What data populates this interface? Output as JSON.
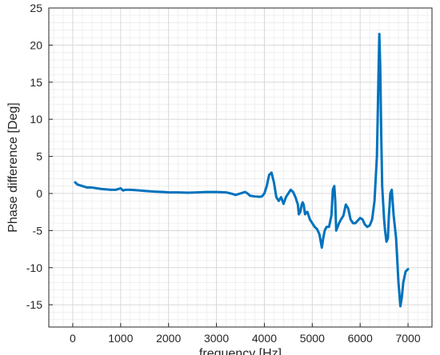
{
  "chart_data": {
    "type": "line",
    "title": "",
    "xlabel": "frequency [Hz]",
    "ylabel": "Phase difference [Deg]",
    "xlim": [
      -500,
      7500
    ],
    "ylim": [
      -18,
      25
    ],
    "xticks": [
      0,
      1000,
      2000,
      3000,
      4000,
      5000,
      6000,
      7000
    ],
    "xtick_labels": [
      "0",
      "1000",
      "2000",
      "3000",
      "4000",
      "5000",
      "6000",
      "7000"
    ],
    "yticks": [
      -15,
      -10,
      -5,
      0,
      5,
      10,
      15,
      20,
      25
    ],
    "ytick_labels": [
      "-15",
      "-10",
      "-5",
      "0",
      "5",
      "10",
      "15",
      "20",
      "25"
    ],
    "grid": "major and minor",
    "line_color": "#0072BD",
    "series": [
      {
        "name": "",
        "x": [
          50,
          100,
          200,
          300,
          400,
          500,
          600,
          700,
          800,
          900,
          950,
          1000,
          1050,
          1100,
          1200,
          1300,
          1400,
          1500,
          1700,
          1900,
          2000,
          2200,
          2400,
          2600,
          2800,
          3000,
          3200,
          3300,
          3400,
          3500,
          3600,
          3650,
          3700,
          3800,
          3900,
          3950,
          4000,
          4050,
          4100,
          4150,
          4200,
          4250,
          4300,
          4350,
          4400,
          4450,
          4500,
          4550,
          4600,
          4650,
          4700,
          4720,
          4750,
          4780,
          4800,
          4820,
          4850,
          4880,
          4900,
          4950,
          5000,
          5050,
          5100,
          5150,
          5200,
          5230,
          5260,
          5300,
          5350,
          5400,
          5430,
          5460,
          5480,
          5500,
          5530,
          5560,
          5600,
          5650,
          5700,
          5750,
          5800,
          5850,
          5900,
          6000,
          6050,
          6100,
          6150,
          6200,
          6250,
          6300,
          6350,
          6380,
          6400,
          6420,
          6440,
          6460,
          6500,
          6520,
          6550,
          6580,
          6600,
          6630,
          6660,
          6700,
          6750,
          6800,
          6840,
          6870,
          6900,
          6950,
          7000
        ],
        "y": [
          1.5,
          1.2,
          1.0,
          0.8,
          0.8,
          0.7,
          0.6,
          0.55,
          0.5,
          0.5,
          0.6,
          0.7,
          0.4,
          0.5,
          0.5,
          0.45,
          0.4,
          0.35,
          0.25,
          0.2,
          0.15,
          0.15,
          0.1,
          0.15,
          0.2,
          0.2,
          0.15,
          0.0,
          -0.2,
          0.0,
          0.2,
          0.0,
          -0.3,
          -0.4,
          -0.45,
          -0.4,
          0.0,
          1.0,
          2.5,
          2.8,
          1.5,
          -0.5,
          -1.0,
          -0.5,
          -1.4,
          -0.5,
          0.0,
          0.5,
          0.2,
          -0.5,
          -1.5,
          -2.8,
          -2.5,
          -1.5,
          -1.2,
          -1.5,
          -2.8,
          -2.5,
          -2.5,
          -3.5,
          -4.0,
          -4.5,
          -4.8,
          -5.5,
          -7.3,
          -6.0,
          -5.0,
          -4.5,
          -4.5,
          -3.0,
          0.5,
          1.0,
          -1.0,
          -5.0,
          -4.5,
          -4.0,
          -3.5,
          -3.0,
          -1.5,
          -2.0,
          -3.5,
          -4.0,
          -4.0,
          -3.3,
          -3.5,
          -4.2,
          -4.5,
          -4.3,
          -3.5,
          -1.0,
          5.0,
          15.0,
          21.5,
          17.0,
          8.0,
          1.0,
          -3.5,
          -5.0,
          -6.5,
          -6.0,
          -3.0,
          0.0,
          0.5,
          -3.0,
          -6.0,
          -12.0,
          -15.2,
          -14.0,
          -12.0,
          -10.5,
          -10.2
        ]
      }
    ]
  }
}
